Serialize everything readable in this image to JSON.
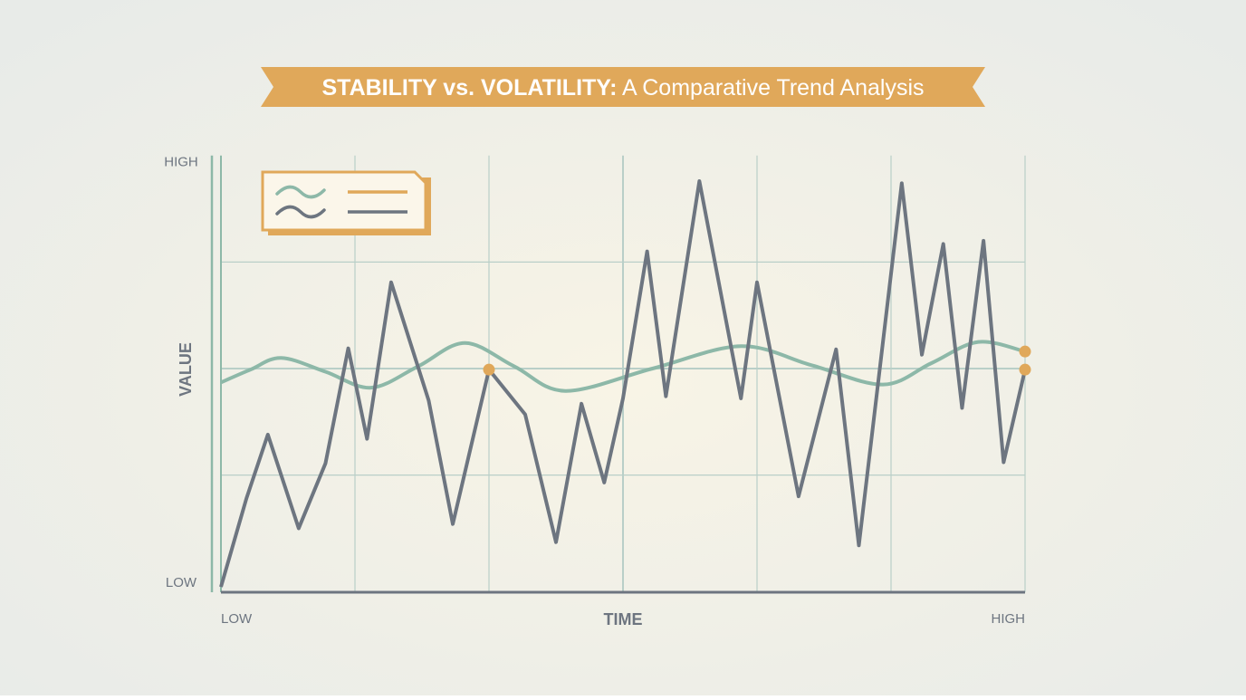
{
  "chart_data": {
    "type": "line",
    "title": "STABILITY vs. VOLATILITY:",
    "subtitle": "A Comparative Trend Analysis",
    "xlabel": "TIME",
    "ylabel": "VALUE",
    "xlim": [
      0,
      6
    ],
    "ylim": [
      -0.1,
      4.1
    ],
    "xticks": [
      {
        "value": 0,
        "label": "LOW"
      },
      {
        "value": 6,
        "label": "HIGH"
      }
    ],
    "yticks": [
      {
        "value": 0,
        "label": "LOW"
      },
      {
        "value": 4,
        "label": "HIGH"
      }
    ],
    "xgrid": [
      1,
      2,
      3,
      4,
      5,
      6
    ],
    "ygrid": [
      1,
      2,
      3
    ],
    "grid": true,
    "grid_color": "#b9cfc8",
    "accent_color": "#e0a85a",
    "series": [
      {
        "color": "#6d7580",
        "x": [
          0,
          0.19,
          0.35,
          0.58,
          0.78,
          0.95,
          1.09,
          1.27,
          1.55,
          1.73,
          2,
          2.27,
          2.5,
          2.69,
          2.86,
          3,
          3.18,
          3.32,
          3.57,
          3.88,
          4,
          4.31,
          4.59,
          4.76,
          5.08,
          5.23,
          5.39,
          5.53,
          5.69,
          5.84,
          6
        ],
        "values": [
          -0.05,
          0.78,
          1.38,
          0.5,
          1.11,
          2.19,
          1.34,
          2.81,
          1.7,
          0.54,
          1.99,
          1.57,
          0.37,
          1.67,
          0.93,
          1.72,
          3.1,
          1.74,
          3.76,
          1.72,
          2.81,
          0.8,
          2.18,
          0.34,
          3.74,
          2.13,
          3.17,
          1.63,
          3.2,
          1.12,
          1.99
        ]
      },
      {
        "color": "#8db8a8",
        "smooth": true,
        "x": [
          0,
          0.22,
          0.45,
          0.78,
          1.12,
          1.47,
          1.82,
          2.19,
          2.57,
          3.22,
          3.88,
          4.41,
          4.94,
          5.3,
          5.65,
          6
        ],
        "values": [
          1.87,
          1.99,
          2.1,
          1.97,
          1.82,
          2.02,
          2.24,
          2.02,
          1.79,
          2.0,
          2.21,
          2.03,
          1.85,
          2.05,
          2.25,
          2.16
        ]
      }
    ],
    "highlights": [
      {
        "x": 2,
        "y": 1.99
      },
      {
        "x": 6,
        "y": 2.16
      },
      {
        "x": 6,
        "y": 1.99
      }
    ]
  }
}
